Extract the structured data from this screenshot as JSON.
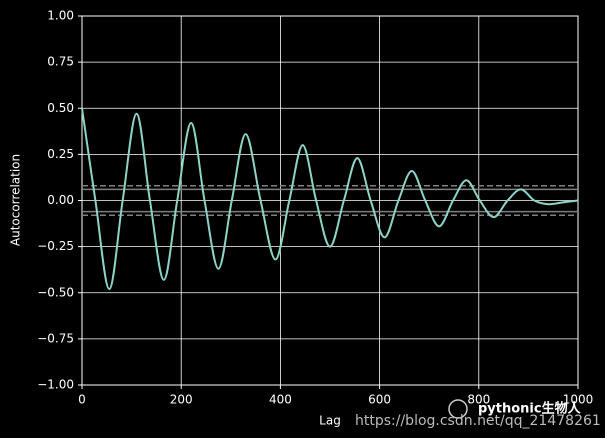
{
  "chart_data": {
    "type": "line",
    "xlabel": "Lag",
    "ylabel": "Autocorrelation",
    "x": [
      0,
      27,
      55,
      82,
      110,
      137,
      165,
      192,
      220,
      247,
      275,
      302,
      330,
      360,
      390,
      418,
      445,
      472,
      500,
      528,
      555,
      582,
      610,
      638,
      665,
      692,
      720,
      748,
      775,
      802,
      830,
      858,
      885,
      912,
      940,
      970,
      1000
    ],
    "series": [
      {
        "name": "Autocorrelation",
        "color": "#8dd3c7",
        "values": [
          0.5,
          0.0,
          -0.48,
          0.0,
          0.47,
          0.0,
          -0.43,
          0.0,
          0.42,
          0.0,
          -0.37,
          0.0,
          0.36,
          0.0,
          -0.32,
          0.0,
          0.3,
          0.0,
          -0.25,
          0.0,
          0.23,
          0.0,
          -0.2,
          0.0,
          0.16,
          0.0,
          -0.14,
          0.0,
          0.11,
          0.0,
          -0.09,
          0.0,
          0.06,
          0.0,
          -0.02,
          -0.01,
          0.0
        ]
      }
    ],
    "reference_lines": [
      {
        "value": 0.08,
        "dashed": true
      },
      {
        "value": 0.06,
        "dashed": false
      },
      {
        "value": -0.06,
        "dashed": false
      },
      {
        "value": -0.08,
        "dashed": true
      }
    ],
    "reference_color": "#808080",
    "xlim": [
      0,
      1000
    ],
    "xticks": [
      0,
      200,
      400,
      600,
      800,
      1000
    ],
    "ylim": [
      -1,
      1
    ],
    "yticks": [
      {
        "value": -1,
        "label": "−1.00"
      },
      {
        "value": -0.75,
        "label": "−0.75"
      },
      {
        "value": -0.5,
        "label": "−0.50"
      },
      {
        "value": -0.25,
        "label": "−0.25"
      },
      {
        "value": 0,
        "label": "0.00"
      },
      {
        "value": 0.25,
        "label": "0.25"
      },
      {
        "value": 0.5,
        "label": "0.50"
      },
      {
        "value": 0.75,
        "label": "0.75"
      },
      {
        "value": 1,
        "label": "1.00"
      }
    ],
    "grid": true,
    "annotations": [
      "pythonic生物人",
      "https://blog.csdn.net/qq_21478261"
    ]
  }
}
